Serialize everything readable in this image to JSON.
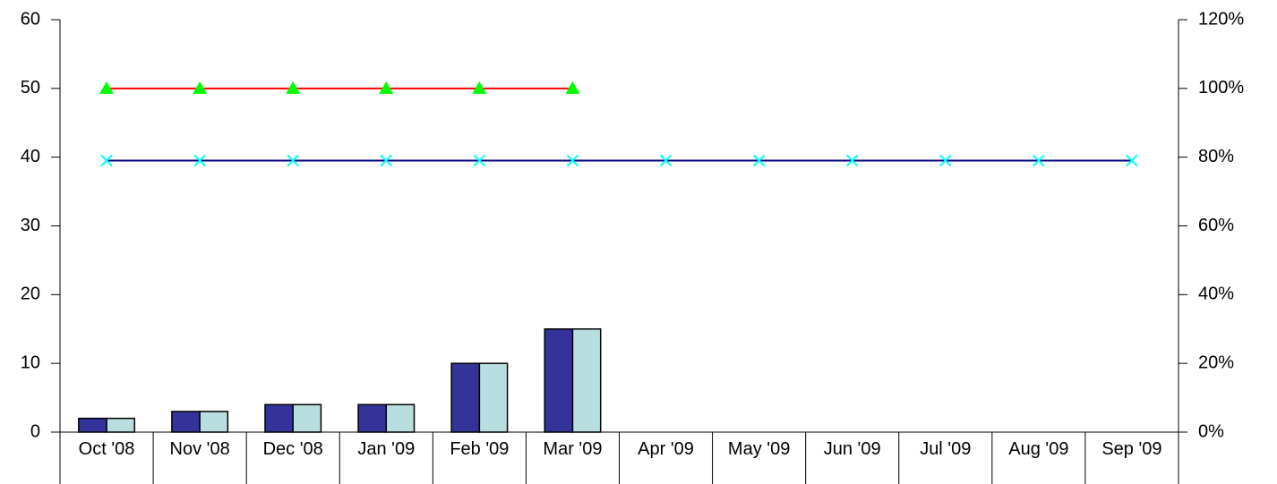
{
  "chart_data": {
    "type": "combo",
    "categories": [
      "Oct '08",
      "Nov '08",
      "Dec '08",
      "Jan '09",
      "Feb '09",
      "Mar '09",
      "Apr '09",
      "May '09",
      "Jun '09",
      "Jul '09",
      "Aug '09",
      "Sep '09"
    ],
    "series": [
      {
        "type": "bar",
        "color": "#333399",
        "values": [
          2,
          3,
          4,
          4,
          10,
          15,
          null,
          null,
          null,
          null,
          null,
          null
        ]
      },
      {
        "type": "bar",
        "color": "#b8dee0",
        "values": [
          2,
          3,
          4,
          4,
          10,
          15,
          null,
          null,
          null,
          null,
          null,
          null
        ]
      },
      {
        "type": "line",
        "axis": "y2",
        "color": "#ff0000",
        "marker": "triangle",
        "marker_color": "#00ff00",
        "values": [
          100,
          100,
          100,
          100,
          100,
          100,
          null,
          null,
          null,
          null,
          null,
          null
        ]
      },
      {
        "type": "line",
        "axis": "y2",
        "color": "#000080",
        "marker": "x",
        "marker_color": "#00ffff",
        "values": [
          79,
          79,
          79,
          79,
          79,
          79,
          79,
          79,
          79,
          79,
          79,
          79
        ]
      }
    ],
    "ylim": [
      0,
      60
    ],
    "yticks": [
      0,
      10,
      20,
      30,
      40,
      50,
      60
    ],
    "y2lim": [
      0,
      120
    ],
    "y2ticks": [
      {
        "value": 0,
        "label": "0%"
      },
      {
        "value": 20,
        "label": "20%"
      },
      {
        "value": 40,
        "label": "40%"
      },
      {
        "value": 60,
        "label": "60%"
      },
      {
        "value": 80,
        "label": "80%"
      },
      {
        "value": 100,
        "label": "100%"
      },
      {
        "value": 120,
        "label": "120%"
      }
    ],
    "grid": false
  }
}
